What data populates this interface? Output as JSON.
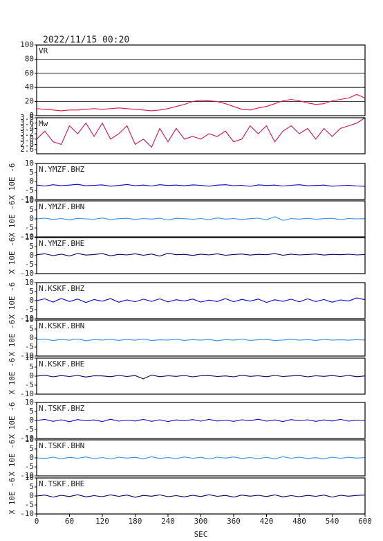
{
  "title": "2022/11/15 00:20",
  "chart_data": [
    {
      "type": "line",
      "title": "VR",
      "color": "#dc143c",
      "grid": true,
      "xlim": [
        0,
        600
      ],
      "ylim": [
        0,
        100
      ],
      "yticks": [
        0,
        20,
        40,
        60,
        80,
        100
      ],
      "x": [
        0,
        15,
        30,
        45,
        60,
        75,
        90,
        105,
        120,
        135,
        150,
        165,
        180,
        195,
        210,
        225,
        240,
        255,
        270,
        285,
        300,
        315,
        330,
        345,
        360,
        375,
        390,
        405,
        420,
        435,
        450,
        465,
        480,
        495,
        510,
        525,
        540,
        555,
        570,
        585,
        600
      ],
      "values": [
        10,
        9,
        8,
        7,
        8,
        8,
        9,
        10,
        9,
        10,
        11,
        10,
        9,
        8,
        7,
        8,
        10,
        13,
        16,
        20,
        22,
        21,
        20,
        17,
        13,
        9,
        8,
        11,
        13,
        17,
        21,
        23,
        21,
        18,
        16,
        17,
        21,
        23,
        25,
        30,
        25
      ]
    },
    {
      "type": "line",
      "title": "Mw",
      "color": "#d01050",
      "grid": false,
      "xlim": [
        0,
        600
      ],
      "ylim": [
        2.45,
        3.8
      ],
      "yticks": [
        2.6,
        2.8,
        {
          "value": 3,
          "label": "3.0"
        },
        3.2,
        3.4,
        3.6,
        3.8
      ],
      "x": [
        0,
        15,
        30,
        45,
        60,
        75,
        90,
        105,
        120,
        135,
        150,
        165,
        180,
        195,
        210,
        225,
        240,
        255,
        270,
        285,
        300,
        315,
        330,
        345,
        360,
        375,
        390,
        405,
        420,
        435,
        450,
        465,
        480,
        495,
        510,
        525,
        540,
        555,
        570,
        585,
        600
      ],
      "values": [
        3.0,
        3.3,
        2.9,
        2.8,
        3.5,
        3.2,
        3.6,
        3.1,
        3.6,
        3.0,
        3.2,
        3.5,
        2.8,
        3.0,
        2.7,
        3.4,
        2.9,
        3.4,
        3.0,
        3.1,
        3.0,
        3.2,
        3.1,
        3.3,
        2.9,
        3.0,
        3.5,
        3.2,
        3.5,
        2.9,
        3.3,
        3.5,
        3.2,
        3.4,
        3.0,
        3.4,
        3.1,
        3.4,
        3.5,
        3.6,
        3.8
      ]
    },
    {
      "type": "line",
      "title": "N.YMZF.BHZ",
      "ylabel": "X 10E -6",
      "color": "#0000cc",
      "grid": false,
      "xlim": [
        0,
        600
      ],
      "ylim": [
        -10,
        10
      ],
      "yticks": [
        -10,
        -5,
        0,
        5,
        10
      ],
      "x": [
        0,
        15,
        30,
        45,
        60,
        75,
        90,
        105,
        120,
        135,
        150,
        165,
        180,
        195,
        210,
        225,
        240,
        255,
        270,
        285,
        300,
        315,
        330,
        345,
        360,
        375,
        390,
        405,
        420,
        435,
        450,
        465,
        480,
        495,
        510,
        525,
        540,
        555,
        570,
        585,
        600
      ],
      "values": [
        -2,
        -2.5,
        -1.8,
        -2.3,
        -2,
        -1.6,
        -2.4,
        -2.1,
        -1.9,
        -2.6,
        -2.2,
        -1.7,
        -2.3,
        -2,
        -2.5,
        -1.8,
        -2.2,
        -2,
        -2.4,
        -1.9,
        -2.1,
        -2.6,
        -2,
        -1.8,
        -2.3,
        -2.1,
        -2.7,
        -1.9,
        -2.2,
        -2,
        -2.5,
        -2.1,
        -1.8,
        -2.4,
        -2.2,
        -2,
        -2.6,
        -2.3,
        -2.1,
        -2.5,
        -2.7
      ]
    },
    {
      "type": "line",
      "title": "N.YMZF.BHN",
      "ylabel": "X 10E -6",
      "color": "#2f8ff0",
      "grid": false,
      "xlim": [
        0,
        600
      ],
      "ylim": [
        -10,
        10
      ],
      "yticks": [
        -10,
        -5,
        0,
        5,
        10
      ],
      "x": [
        0,
        15,
        30,
        45,
        60,
        75,
        90,
        105,
        120,
        135,
        150,
        165,
        180,
        195,
        210,
        225,
        240,
        255,
        270,
        285,
        300,
        315,
        330,
        345,
        360,
        375,
        390,
        405,
        420,
        435,
        450,
        465,
        480,
        495,
        510,
        525,
        540,
        555,
        570,
        585,
        600
      ],
      "values": [
        0,
        0.4,
        -0.3,
        0.2,
        -0.5,
        0.3,
        0,
        -0.2,
        0.5,
        -0.4,
        0.1,
        0.3,
        -0.3,
        0.2,
        -0.1,
        0.4,
        -0.6,
        0.3,
        0.1,
        -0.2,
        0.2,
        -0.4,
        0.5,
        -0.1,
        0.2,
        -0.3,
        0.1,
        0.4,
        -0.5,
        1.2,
        -0.8,
        0.2,
        -0.1,
        0.3,
        -0.2,
        0.1,
        0.3,
        -0.4,
        0.2,
        0,
        0.1
      ]
    },
    {
      "type": "line",
      "title": "N.YMZF.BHE",
      "ylabel": "X 10E -6",
      "color": "#000066",
      "grid": false,
      "xlim": [
        0,
        600
      ],
      "ylim": [
        -10,
        10
      ],
      "yticks": [
        -10,
        -5,
        0,
        5,
        10
      ],
      "x": [
        0,
        15,
        30,
        45,
        60,
        75,
        90,
        105,
        120,
        135,
        150,
        165,
        180,
        195,
        210,
        225,
        240,
        255,
        270,
        285,
        300,
        315,
        330,
        345,
        360,
        375,
        390,
        405,
        420,
        435,
        450,
        465,
        480,
        495,
        510,
        525,
        540,
        555,
        570,
        585,
        600
      ],
      "values": [
        0.5,
        1,
        0,
        0.8,
        -0.2,
        1.2,
        0.3,
        0.6,
        1.1,
        -0.1,
        0.7,
        0.4,
        1,
        0.2,
        0.9,
        -0.3,
        1.3,
        0.5,
        0.7,
        0.1,
        0.8,
        0.4,
        1,
        0.2,
        0.6,
        0.9,
        0.3,
        0.7,
        0.5,
        1.1,
        0.2,
        0.8,
        0.4,
        0.6,
        0.9,
        0.3,
        0.7,
        0.5,
        0.8,
        0.4,
        0.6
      ]
    },
    {
      "type": "line",
      "title": "N.KSKF.BHZ",
      "ylabel": "X 10E -6",
      "color": "#0000cc",
      "grid": false,
      "xlim": [
        0,
        600
      ],
      "ylim": [
        -10,
        10
      ],
      "yticks": [
        -10,
        -5,
        0,
        5,
        10
      ],
      "x": [
        0,
        15,
        30,
        45,
        60,
        75,
        90,
        105,
        120,
        135,
        150,
        165,
        180,
        195,
        210,
        225,
        240,
        255,
        270,
        285,
        300,
        315,
        330,
        345,
        360,
        375,
        390,
        405,
        420,
        435,
        450,
        465,
        480,
        495,
        510,
        525,
        540,
        555,
        570,
        585,
        600
      ],
      "values": [
        0,
        1,
        -0.8,
        1.2,
        -0.5,
        0.9,
        -1,
        0.6,
        -0.3,
        1.1,
        -0.9,
        0.4,
        -0.6,
        0.8,
        -0.4,
        1,
        -0.7,
        0.5,
        -0.2,
        0.9,
        -0.8,
        0.3,
        -0.5,
        1.1,
        -0.6,
        0.7,
        -0.3,
        0.9,
        -1,
        0.5,
        -0.4,
        0.8,
        -0.7,
        1,
        -0.5,
        0.6,
        -0.9,
        0.4,
        -0.2,
        1.5,
        0.5
      ]
    },
    {
      "type": "line",
      "title": "N.KSKF.BHN",
      "ylabel": "X 10E -6",
      "color": "#2f8ff0",
      "grid": false,
      "xlim": [
        0,
        600
      ],
      "ylim": [
        -10,
        10
      ],
      "yticks": [
        -10,
        -5,
        0,
        5,
        10
      ],
      "x": [
        0,
        15,
        30,
        45,
        60,
        75,
        90,
        105,
        120,
        135,
        150,
        165,
        180,
        195,
        210,
        225,
        240,
        255,
        270,
        285,
        300,
        315,
        330,
        345,
        360,
        375,
        390,
        405,
        420,
        435,
        450,
        465,
        480,
        495,
        510,
        525,
        540,
        555,
        570,
        585,
        600
      ],
      "values": [
        -1,
        -0.6,
        -1.4,
        -0.8,
        -1.2,
        -0.5,
        -1.5,
        -0.9,
        -1.1,
        -0.7,
        -1.3,
        -0.8,
        -1.2,
        -0.6,
        -1.4,
        -1,
        -1.1,
        -0.7,
        -1.3,
        -0.9,
        -1.2,
        -0.8,
        -1.5,
        -0.9,
        -1.1,
        -0.6,
        -1.3,
        -1,
        -0.8,
        -1.4,
        -1.1,
        -0.7,
        -1.2,
        -0.9,
        -1.3,
        -0.8,
        -1.1,
        -1,
        -1.2,
        -0.9,
        -1.1
      ]
    },
    {
      "type": "line",
      "title": "N.KSKF.BHE",
      "ylabel": "X 10E -6",
      "color": "#000066",
      "grid": false,
      "xlim": [
        0,
        600
      ],
      "ylim": [
        -10,
        10
      ],
      "yticks": [
        -10,
        -5,
        0,
        5,
        10
      ],
      "x": [
        0,
        15,
        30,
        45,
        60,
        75,
        90,
        105,
        120,
        135,
        150,
        165,
        180,
        195,
        210,
        225,
        240,
        255,
        270,
        285,
        300,
        315,
        330,
        345,
        360,
        375,
        390,
        405,
        420,
        435,
        450,
        465,
        480,
        495,
        510,
        525,
        540,
        555,
        570,
        585,
        600
      ],
      "values": [
        0,
        0.5,
        -0.4,
        0.3,
        -0.2,
        0.4,
        -0.5,
        0.2,
        0.1,
        -0.3,
        0.4,
        -0.2,
        0.3,
        -1.5,
        0.6,
        -0.3,
        0.2,
        -0.1,
        0.4,
        -0.4,
        0.2,
        0.3,
        -0.2,
        0.1,
        -0.4,
        0.5,
        -0.1,
        0.2,
        -0.3,
        0.4,
        -0.2,
        0.1,
        0.3,
        -0.4,
        0.2,
        -0.1,
        0.3,
        -0.2,
        0.4,
        -0.3,
        0.1
      ]
    },
    {
      "type": "line",
      "title": "N.TSKF.BHZ",
      "ylabel": "X 10E -6",
      "color": "#0000cc",
      "grid": false,
      "xlim": [
        0,
        600
      ],
      "ylim": [
        -10,
        10
      ],
      "yticks": [
        -10,
        -5,
        0,
        5,
        10
      ],
      "x": [
        0,
        15,
        30,
        45,
        60,
        75,
        90,
        105,
        120,
        135,
        150,
        165,
        180,
        195,
        210,
        225,
        240,
        255,
        270,
        285,
        300,
        315,
        330,
        345,
        360,
        375,
        390,
        405,
        420,
        435,
        450,
        465,
        480,
        495,
        510,
        525,
        540,
        555,
        570,
        585,
        600
      ],
      "values": [
        0,
        0.6,
        -0.5,
        0.4,
        -0.7,
        0.5,
        -0.2,
        0.3,
        -0.6,
        0.7,
        -0.4,
        0.2,
        -0.3,
        0.6,
        -0.5,
        0.4,
        -0.6,
        0.3,
        -0.2,
        0.5,
        -0.4,
        0.6,
        -0.3,
        0.2,
        -0.5,
        0.4,
        -0.1,
        0.7,
        -0.4,
        0.3,
        -0.6,
        0.5,
        -0.2,
        0.4,
        -0.5,
        0.3,
        -0.3,
        0.6,
        -0.4,
        0.2,
        0
      ]
    },
    {
      "type": "line",
      "title": "N.TSKF.BHN",
      "ylabel": "X 10E -6",
      "color": "#2f8ff0",
      "grid": false,
      "xlim": [
        0,
        600
      ],
      "ylim": [
        -10,
        10
      ],
      "yticks": [
        -10,
        -5,
        0,
        5,
        10
      ],
      "x": [
        0,
        15,
        30,
        45,
        60,
        75,
        90,
        105,
        120,
        135,
        150,
        165,
        180,
        195,
        210,
        225,
        240,
        255,
        270,
        285,
        300,
        315,
        330,
        345,
        360,
        375,
        390,
        405,
        420,
        435,
        450,
        465,
        480,
        495,
        510,
        525,
        540,
        555,
        570,
        585,
        600
      ],
      "values": [
        0,
        -0.3,
        0.4,
        -0.5,
        0.3,
        -0.2,
        0.5,
        -0.4,
        0.2,
        -0.6,
        0.4,
        -0.1,
        0.3,
        -0.5,
        0.6,
        -0.3,
        0.2,
        -0.4,
        0.5,
        -0.2,
        0.3,
        -0.6,
        0.4,
        -0.1,
        0.5,
        -0.3,
        0.2,
        -0.4,
        0.3,
        -0.5,
        0.6,
        -0.2,
        0.4,
        -0.3,
        0.1,
        -0.5,
        0.4,
        -0.2,
        0.3,
        -0.1,
        0.2
      ]
    },
    {
      "type": "line",
      "title": "N.TSKF.BHE",
      "ylabel": "X 10E -6",
      "color": "#000066",
      "grid": false,
      "xlim": [
        0,
        600
      ],
      "ylim": [
        -10,
        10
      ],
      "yticks": [
        -10,
        -5,
        0,
        5,
        10
      ],
      "xticks": [
        0,
        60,
        120,
        180,
        240,
        300,
        360,
        420,
        480,
        540,
        600
      ],
      "xlabel": "SEC",
      "x": [
        0,
        15,
        30,
        45,
        60,
        75,
        90,
        105,
        120,
        135,
        150,
        165,
        180,
        195,
        210,
        225,
        240,
        255,
        270,
        285,
        300,
        315,
        330,
        345,
        360,
        375,
        390,
        405,
        420,
        435,
        450,
        465,
        480,
        495,
        510,
        525,
        540,
        555,
        570,
        585,
        600
      ],
      "values": [
        0,
        0.5,
        -0.6,
        0.4,
        -0.3,
        0.7,
        -0.5,
        0.2,
        -0.4,
        0.6,
        -0.2,
        0.5,
        -0.7,
        0.3,
        -0.1,
        0.6,
        -0.4,
        0.2,
        -0.5,
        0.4,
        -0.3,
        0.7,
        -0.2,
        0.3,
        -0.6,
        0.5,
        -0.1,
        0.4,
        -0.3,
        0.6,
        -0.5,
        0.2,
        -0.4,
        0.3,
        -0.2,
        0.5,
        -0.6,
        0.4,
        -0.1,
        0.3,
        0.5
      ]
    }
  ]
}
